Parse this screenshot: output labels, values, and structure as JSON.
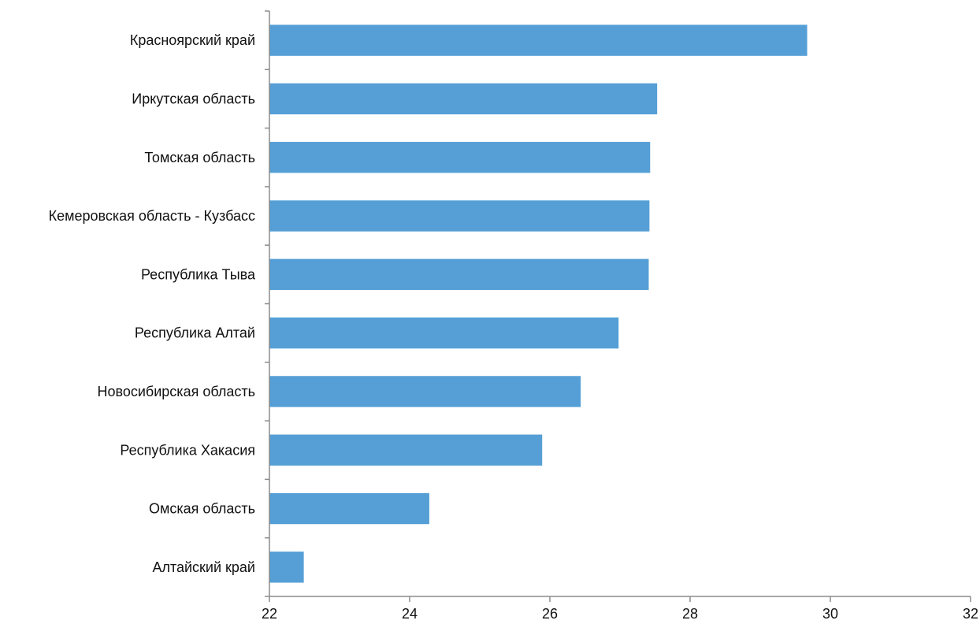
{
  "chart_data": {
    "type": "bar",
    "orientation": "horizontal",
    "categories": [
      "Красноярский край",
      "Иркутская область",
      "Томская область",
      "Кемеровская область - Кузбасс",
      "Республика Тыва",
      "Республика Алтай",
      "Новосибирская область",
      "Республика Хакасия",
      "Омская область",
      "Алтайский край"
    ],
    "values": [
      29.67,
      27.53,
      27.43,
      27.42,
      27.41,
      26.98,
      26.44,
      25.89,
      24.28,
      22.49
    ],
    "xlim": [
      22,
      32
    ],
    "xticks": [
      22,
      24,
      26,
      28,
      30,
      32
    ],
    "bar_color": "#559fd6",
    "axis_color": "#8c8c8c",
    "grid": false,
    "legend": false,
    "title": "",
    "xlabel": "",
    "ylabel": ""
  }
}
